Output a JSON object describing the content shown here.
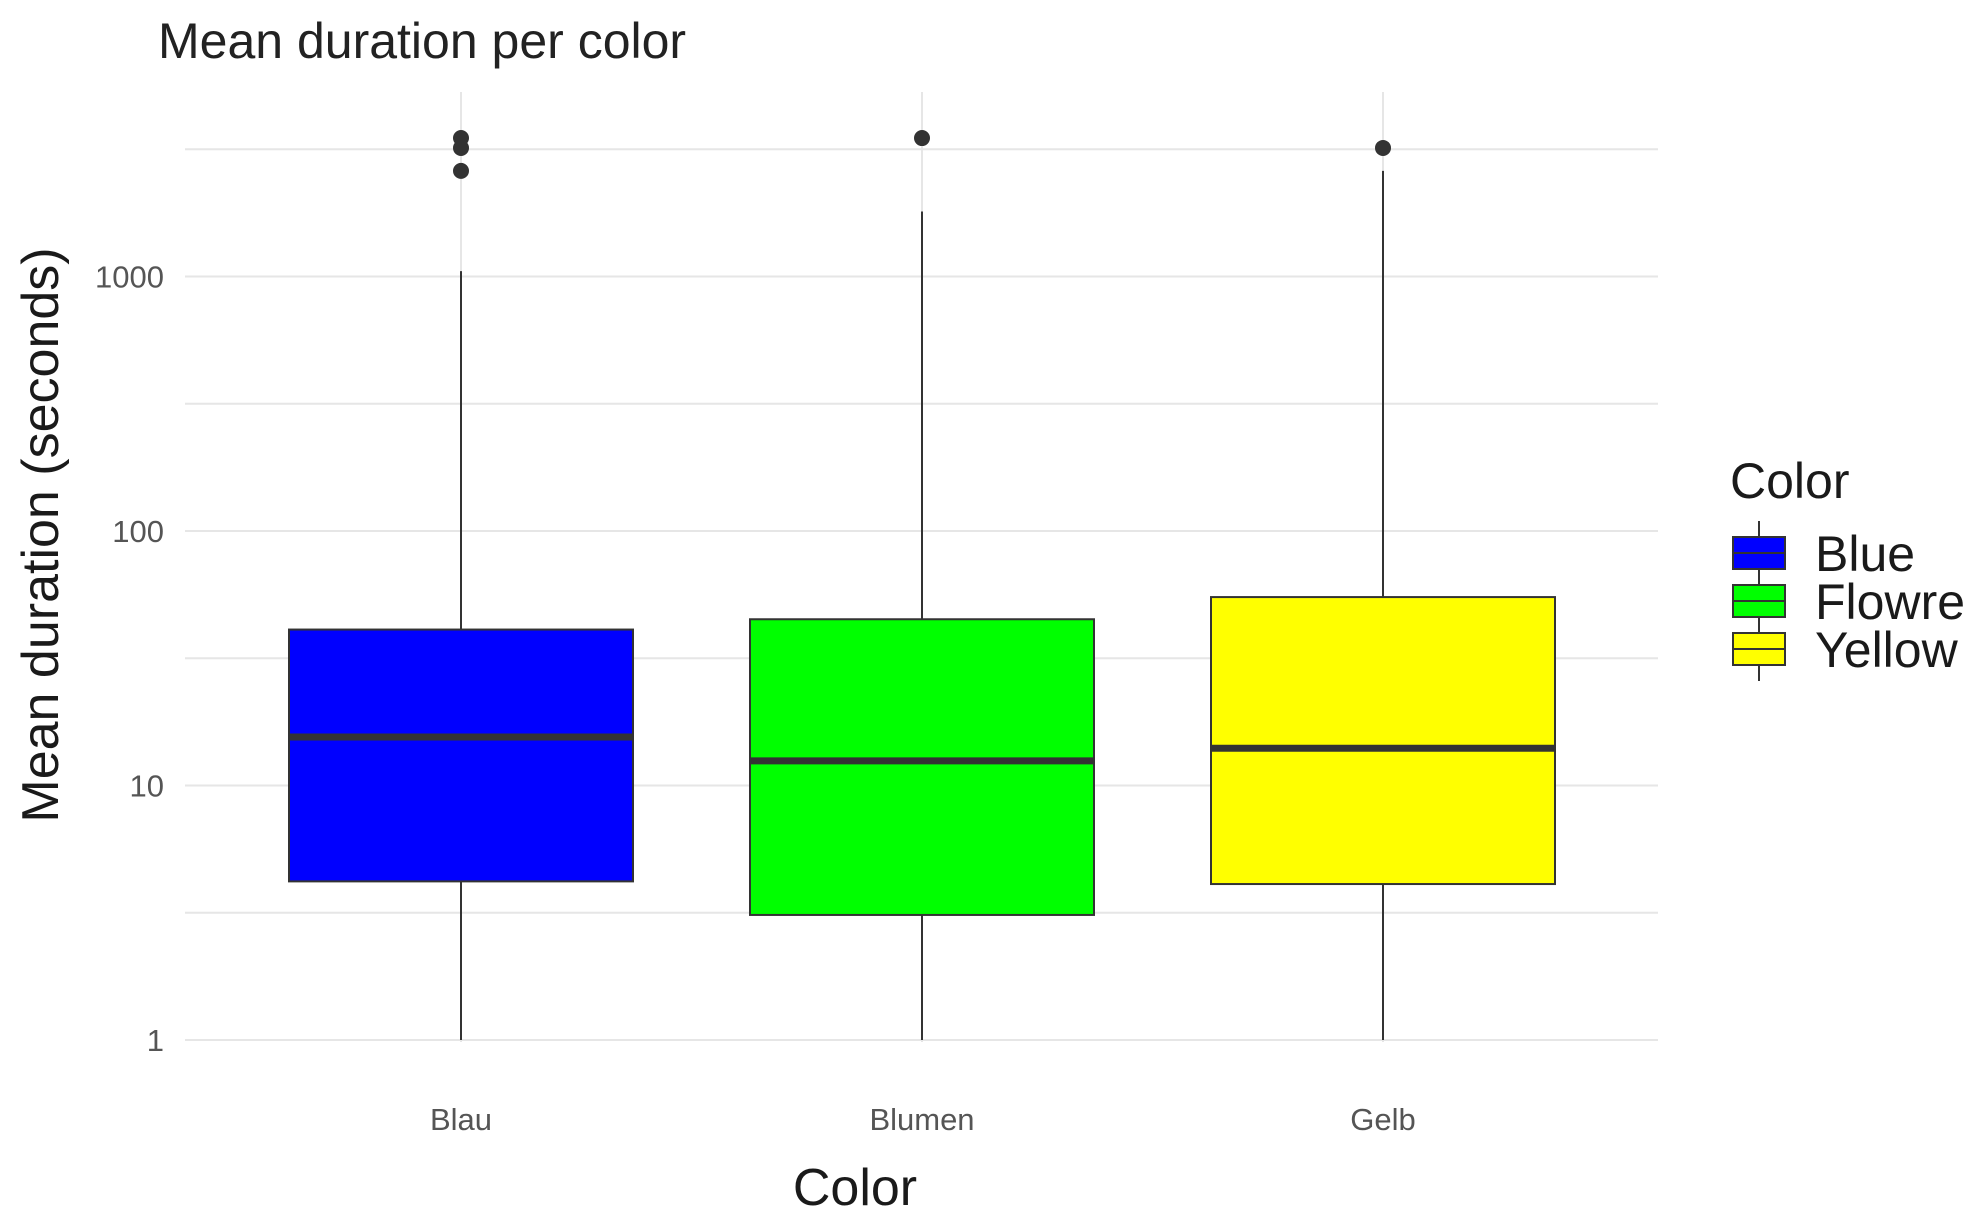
{
  "chart_data": {
    "type": "boxplot",
    "title": "Mean duration per color",
    "xlabel": "Color",
    "ylabel": "Mean duration (seconds)",
    "y_scale": "log10",
    "ylim": [
      1,
      3000
    ],
    "y_ticks": [
      1,
      10,
      100,
      1000
    ],
    "y_tick_labels": [
      "1",
      "10",
      "100",
      "1000"
    ],
    "grid": true,
    "legend": {
      "title": "Color",
      "position": "right",
      "entries": [
        {
          "label": "Blue",
          "color": "#0000ff"
        },
        {
          "label": "Flowre",
          "color": "#00ff00"
        },
        {
          "label": "Yellow",
          "color": "#ffff00"
        }
      ]
    },
    "categories": [
      "Blau",
      "Blumen",
      "Gelb"
    ],
    "boxes": [
      {
        "category": "Blau",
        "color": "#0000ff",
        "whisker_low": 1,
        "q1": 4.2,
        "median": 15.5,
        "q3": 41,
        "whisker_high": 1050,
        "outliers": [
          2600,
          3200,
          3500
        ]
      },
      {
        "category": "Blumen",
        "color": "#00ff00",
        "whisker_low": 1,
        "q1": 3.1,
        "median": 12.5,
        "q3": 45,
        "whisker_high": 1800,
        "outliers": [
          3500
        ]
      },
      {
        "category": "Gelb",
        "color": "#ffff00",
        "whisker_low": 1,
        "q1": 4.1,
        "median": 14,
        "q3": 55,
        "whisker_high": 2600,
        "outliers": [
          3200
        ]
      }
    ]
  }
}
